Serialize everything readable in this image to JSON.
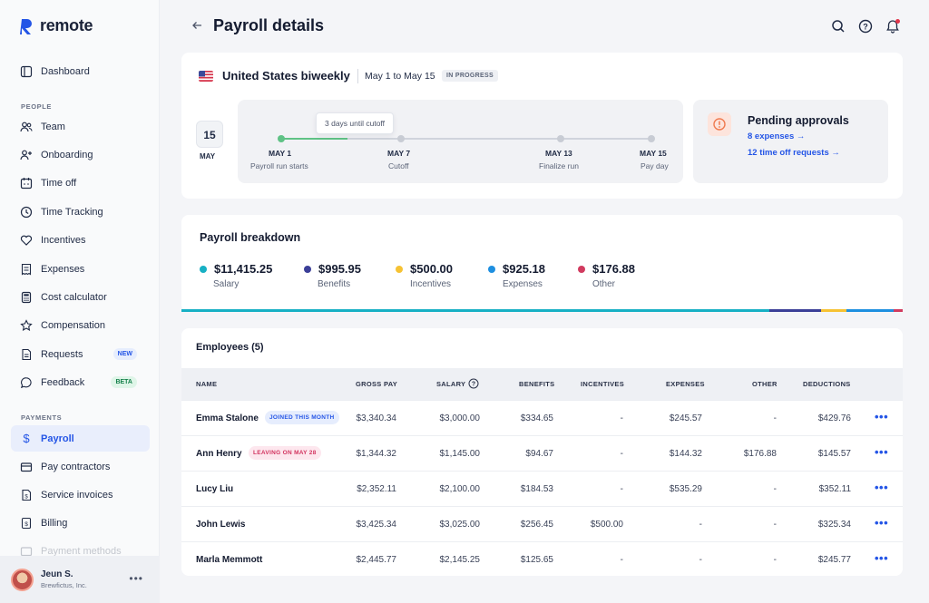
{
  "app": {
    "name": "remote"
  },
  "nav": {
    "dashboard": "Dashboard",
    "people_section": "PEOPLE",
    "team": "Team",
    "onboarding": "Onboarding",
    "time_off": "Time off",
    "time_tracking": "Time Tracking",
    "incentives": "Incentives",
    "expenses": "Expenses",
    "cost_calculator": "Cost calculator",
    "compensation": "Compensation",
    "requests": "Requests",
    "requests_badge": "NEW",
    "feedback": "Feedback",
    "feedback_badge": "BETA",
    "payments_section": "PAYMENTS",
    "payroll": "Payroll",
    "pay_contractors": "Pay contractors",
    "service_invoices": "Service invoices",
    "billing": "Billing",
    "payment_methods": "Payment methods"
  },
  "user": {
    "name": "Jeun S.",
    "org": "Brewfictus, Inc."
  },
  "header": {
    "title": "Payroll details"
  },
  "payroll_run": {
    "title": "United States biweekly",
    "date_range": "May 1 to May 15",
    "status": "IN PROGRESS",
    "calendar_day": "15",
    "calendar_month": "MAY",
    "tooltip": "3 days until cutoff",
    "milestones": [
      {
        "date": "MAY 1",
        "label": "Payroll run starts"
      },
      {
        "date": "MAY 7",
        "label": "Cutoff"
      },
      {
        "date": "MAY 13",
        "label": "Finalize run"
      },
      {
        "date": "MAY 15",
        "label": "Pay day"
      }
    ],
    "progress_fraction": 0.18
  },
  "pending": {
    "title": "Pending approvals",
    "expenses_link": "8 expenses →",
    "timeoff_link": "12 time off requests →"
  },
  "breakdown": {
    "title": "Payroll breakdown",
    "items": [
      {
        "value": "$11,415.25",
        "label": "Salary",
        "color": "#17b0c4",
        "amount": 11415.25
      },
      {
        "value": "$995.95",
        "label": "Benefits",
        "color": "#3b3f98",
        "amount": 995.95
      },
      {
        "value": "$500.00",
        "label": "Incentives",
        "color": "#f6c233",
        "amount": 500.0
      },
      {
        "value": "$925.18",
        "label": "Expenses",
        "color": "#1e8fe0",
        "amount": 925.18
      },
      {
        "value": "$176.88",
        "label": "Other",
        "color": "#d13b5f",
        "amount": 176.88
      }
    ]
  },
  "employees": {
    "title": "Employees (5)",
    "columns": [
      "NAME",
      "GROSS PAY",
      "SALARY",
      "BENEFITS",
      "INCENTIVES",
      "EXPENSES",
      "OTHER",
      "DEDUCTIONS"
    ],
    "rows": [
      {
        "name": "Emma Stalone",
        "tag": "JOINED THIS MONTH",
        "tag_type": "joined",
        "gross": "$3,340.34",
        "salary": "$3,000.00",
        "benefits": "$334.65",
        "incentives": "-",
        "expenses": "$245.57",
        "other": "-",
        "deductions": "$429.76"
      },
      {
        "name": "Ann Henry",
        "tag": "LEAVING ON MAY 28",
        "tag_type": "leaving",
        "gross": "$1,344.32",
        "salary": "$1,145.00",
        "benefits": "$94.67",
        "incentives": "-",
        "expenses": "$144.32",
        "other": "$176.88",
        "deductions": "$145.57"
      },
      {
        "name": "Lucy Liu",
        "tag": "",
        "tag_type": "",
        "gross": "$2,352.11",
        "salary": "$2,100.00",
        "benefits": "$184.53",
        "incentives": "-",
        "expenses": "$535.29",
        "other": "-",
        "deductions": "$352.11"
      },
      {
        "name": "John Lewis",
        "tag": "",
        "tag_type": "",
        "gross": "$3,425.34",
        "salary": "$3,025.00",
        "benefits": "$256.45",
        "incentives": "$500.00",
        "expenses": "-",
        "other": "-",
        "deductions": "$325.34"
      },
      {
        "name": "Marla Memmott",
        "tag": "",
        "tag_type": "",
        "gross": "$2,445.77",
        "salary": "$2,145.25",
        "benefits": "$125.65",
        "incentives": "-",
        "expenses": "-",
        "other": "-",
        "deductions": "$245.77"
      }
    ]
  }
}
